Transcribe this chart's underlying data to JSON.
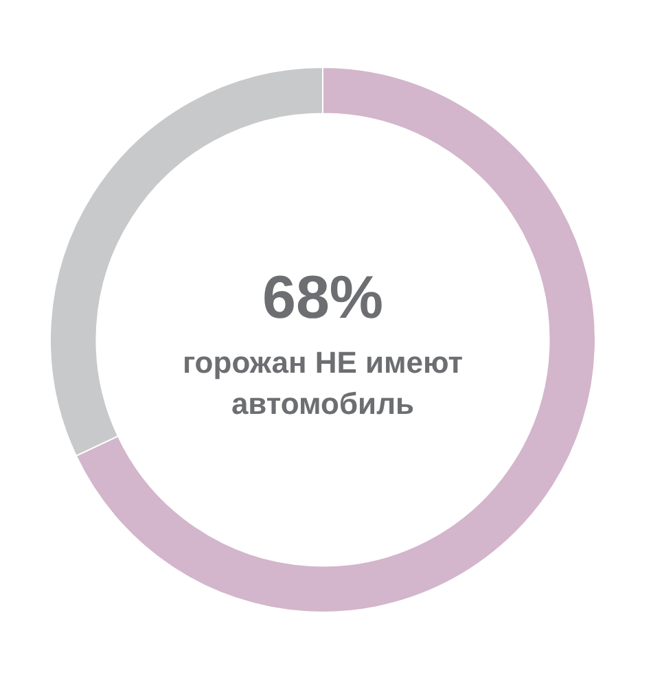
{
  "chart_data": {
    "type": "donut",
    "categories": [
      null,
      null
    ],
    "values": [
      68,
      32
    ],
    "colors": [
      "#d3b6cb",
      "#c8c9cb"
    ],
    "legend": false,
    "annotations": [
      "68%",
      "горожан НЕ имеют автомобиль"
    ]
  }
}
